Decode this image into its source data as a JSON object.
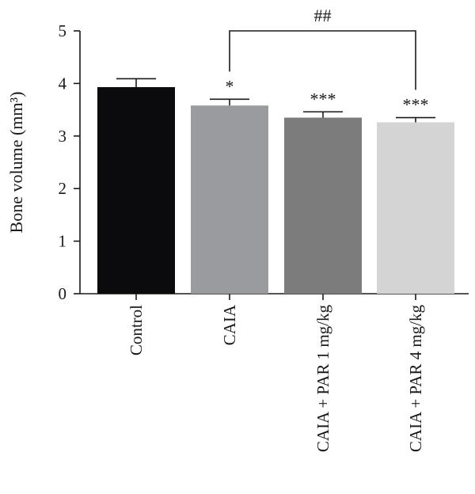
{
  "chart_data": {
    "type": "bar",
    "categories": [
      "Control",
      "CAIA",
      "CAIA + PAR 1 mg/kg",
      "CAIA + PAR 4 mg/kg"
    ],
    "values": [
      3.93,
      3.58,
      3.35,
      3.26
    ],
    "errors": [
      0.16,
      0.12,
      0.11,
      0.09
    ],
    "bar_colors": [
      "#0b0b0d",
      "#9a9b9e",
      "#7b7c7b",
      "#d4d4d4"
    ],
    "significance": [
      "",
      "*",
      "***",
      "***"
    ],
    "bracket": {
      "from": 1,
      "to": 3,
      "label": "##",
      "level": 5.0
    },
    "ylabel": "Bone volume (mm³)",
    "ylim": [
      0,
      5
    ],
    "yticks": [
      "0",
      "1",
      "2",
      "3",
      "4",
      "5"
    ],
    "grid": false
  }
}
